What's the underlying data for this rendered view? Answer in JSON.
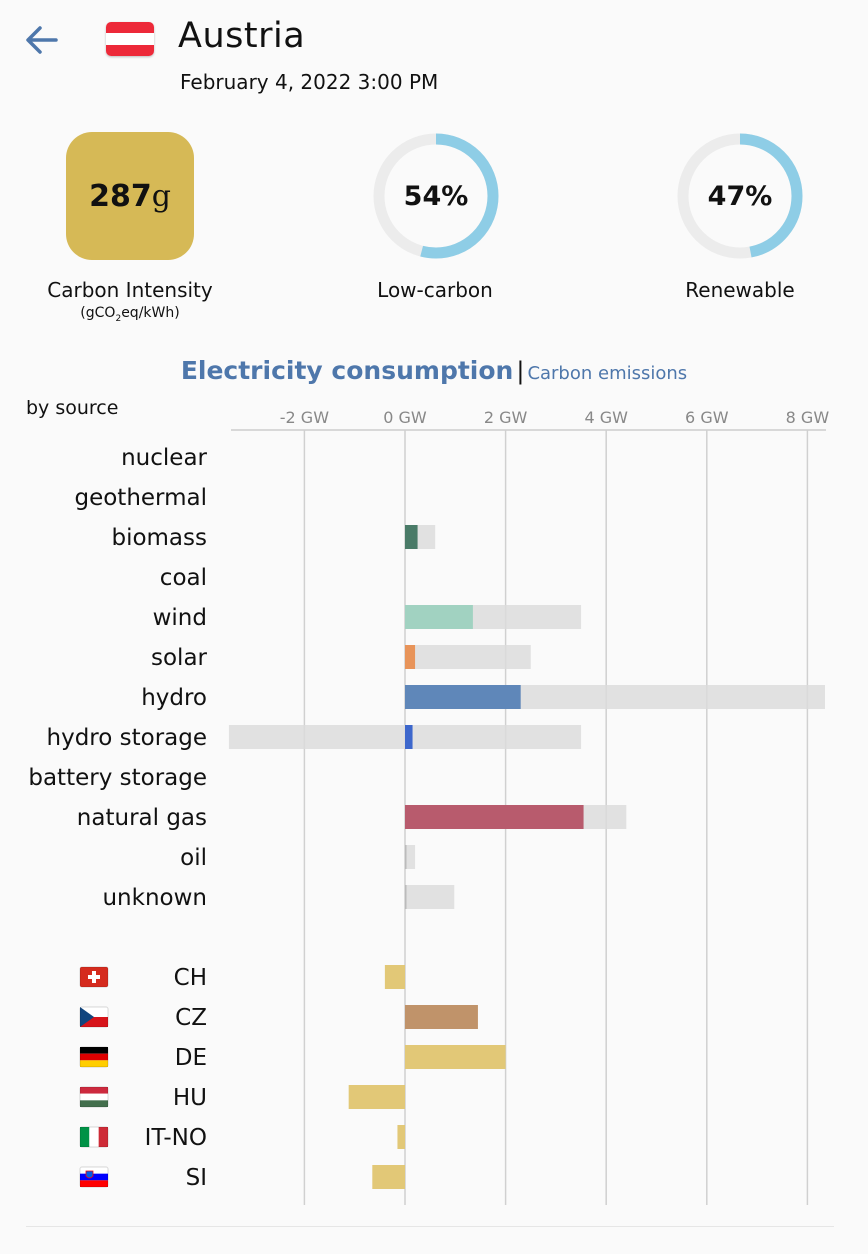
{
  "header": {
    "zone_name": "Austria",
    "datetime": "February 4, 2022 3:00 PM",
    "flag_colors": [
      "#ed2939",
      "#ffffff",
      "#ed2939"
    ]
  },
  "metrics": {
    "carbon_intensity": {
      "value": "287",
      "unit": "g",
      "label": "Carbon Intensity",
      "sublabel_pre": "(gCO",
      "sublabel_sub": "2",
      "sublabel_post": "eq/kWh)",
      "color": "#d6b956"
    },
    "low_carbon": {
      "value": "54%",
      "fraction": 0.54,
      "label": "Low-carbon"
    },
    "renewable": {
      "value": "47%",
      "fraction": 0.47,
      "label": "Renewable"
    },
    "gauge_color": "#8ecde6",
    "gauge_track_color": "#ececec"
  },
  "tabs": {
    "active": "Electricity consumption",
    "separator": "|",
    "inactive": "Carbon emissions"
  },
  "by_source_label": "by source",
  "chart_data": {
    "type": "bar",
    "orientation": "horizontal",
    "x_unit": "GW",
    "xlim": [
      -3.5,
      8.4
    ],
    "ticks": [
      -2,
      0,
      2,
      4,
      6,
      8
    ],
    "tick_labels": [
      "-2 GW",
      "0 GW",
      "2 GW",
      "4 GW",
      "6 GW",
      "8 GW"
    ],
    "sources": [
      {
        "name": "nuclear",
        "value": null,
        "capacity": null,
        "color": "#888888"
      },
      {
        "name": "geothermal",
        "value": null,
        "capacity": null,
        "color": "#888888"
      },
      {
        "name": "biomass",
        "value": 0.25,
        "capacity": 0.6,
        "color": "#4a7b68"
      },
      {
        "name": "coal",
        "value": null,
        "capacity": null,
        "color": "#888888"
      },
      {
        "name": "wind",
        "value": 1.35,
        "capacity": 3.5,
        "color": "#a1d2c1"
      },
      {
        "name": "solar",
        "value": 0.2,
        "capacity": 2.5,
        "color": "#e8945a"
      },
      {
        "name": "hydro",
        "value": 2.3,
        "capacity": 8.35,
        "color": "#5f87b9"
      },
      {
        "name": "hydro storage",
        "value": 0.15,
        "capacity": 3.5,
        "capacity_min": -3.5,
        "color": "#3d67cc"
      },
      {
        "name": "battery storage",
        "value": null,
        "capacity": null,
        "color": "#888888"
      },
      {
        "name": "natural gas",
        "value": 3.55,
        "capacity": 4.4,
        "color": "#b85b6d"
      },
      {
        "name": "oil",
        "value": 0.0,
        "capacity": 0.2,
        "color": "#888888"
      },
      {
        "name": "unknown",
        "value": 0.0,
        "capacity": 0.98,
        "color": "#888888"
      }
    ],
    "exchanges": [
      {
        "zone": "CH",
        "value": -0.4,
        "color": "#e2c877"
      },
      {
        "zone": "CZ",
        "value": 1.45,
        "color": "#c0936a"
      },
      {
        "zone": "DE",
        "value": 2.0,
        "color": "#e2c877"
      },
      {
        "zone": "HU",
        "value": -1.12,
        "color": "#e2c877"
      },
      {
        "zone": "IT-NO",
        "value": -0.15,
        "color": "#e2c877"
      },
      {
        "zone": "SI",
        "value": -0.65,
        "color": "#e2c877"
      }
    ]
  }
}
